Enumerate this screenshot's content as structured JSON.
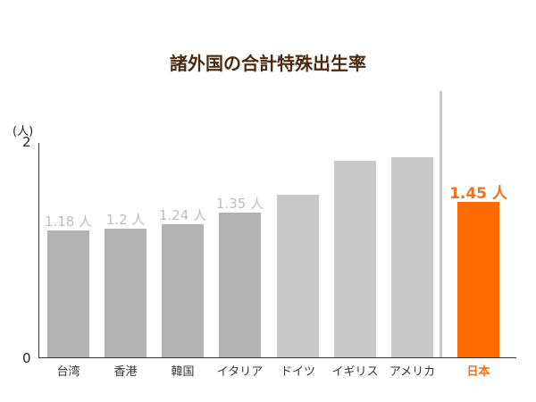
{
  "chart_data": {
    "type": "bar",
    "title": "諸外国の合計特殊出生率",
    "ylabel": "(人)",
    "xlabel": "",
    "ylim": [
      0,
      2
    ],
    "yticks": [
      "0",
      "2"
    ],
    "grid": false,
    "categories": [
      "台湾",
      "香港",
      "韓国",
      "イタリア",
      "ドイツ",
      "イギリス",
      "アメリカ",
      "日本"
    ],
    "values": [
      1.18,
      1.2,
      1.24,
      1.35,
      1.52,
      1.83,
      1.87,
      1.45
    ],
    "data_labels": [
      "1.18 人",
      "1.2 人",
      "1.24 人",
      "1.35 人",
      "",
      "",
      "",
      "1.45 人"
    ],
    "highlight": "日本",
    "colors": {
      "dark_gray": "#b2b2b2",
      "light_gray": "#c8c8c8",
      "highlight": "#ff6a00",
      "label_gray": "#bdbdbd",
      "title": "#4a2a10"
    }
  },
  "unit_label": "(人)",
  "title": "諸外国の合計特殊出生率"
}
